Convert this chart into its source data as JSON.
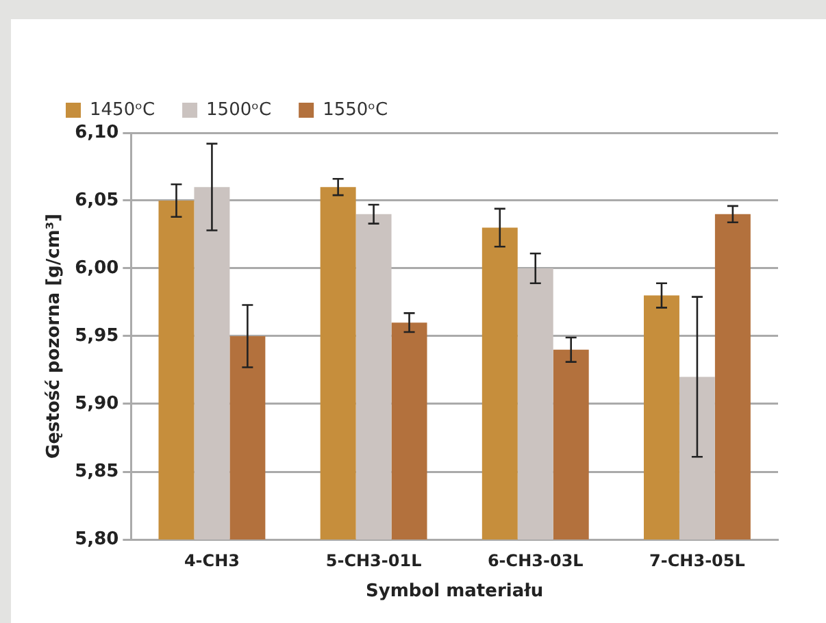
{
  "chart_data": {
    "type": "bar",
    "xlabel": "Symbol materiału",
    "ylabel": "Gęstość pozorna [g/cm³]",
    "categories": [
      "4-CH3",
      "5-CH3-01L",
      "6-CH3-03L",
      "7-CH3-05L"
    ],
    "series": [
      {
        "name": "1450ᵒC",
        "color": "#c68e3c",
        "values": [
          6.05,
          6.06,
          6.03,
          5.98
        ],
        "errors": [
          0.012,
          0.006,
          0.014,
          0.009
        ]
      },
      {
        "name": "1500ᵒC",
        "color": "#cbc3c0",
        "values": [
          6.06,
          6.04,
          6.0,
          5.92
        ],
        "errors": [
          0.032,
          0.007,
          0.011,
          0.059
        ]
      },
      {
        "name": "1550ᵒC",
        "color": "#b3713d",
        "values": [
          5.95,
          5.96,
          5.94,
          6.04
        ],
        "errors": [
          0.023,
          0.007,
          0.009,
          0.006
        ]
      }
    ],
    "ylim": [
      5.8,
      6.1
    ],
    "yticks": [
      {
        "value": 5.8,
        "label": "5,80"
      },
      {
        "value": 5.85,
        "label": "5,85"
      },
      {
        "value": 5.9,
        "label": "5,90"
      },
      {
        "value": 5.95,
        "label": "5,95"
      },
      {
        "value": 6.0,
        "label": "6,00"
      },
      {
        "value": 6.05,
        "label": "6,05"
      },
      {
        "value": 6.1,
        "label": "6,10"
      }
    ],
    "grid": "y",
    "legend": "top left"
  }
}
